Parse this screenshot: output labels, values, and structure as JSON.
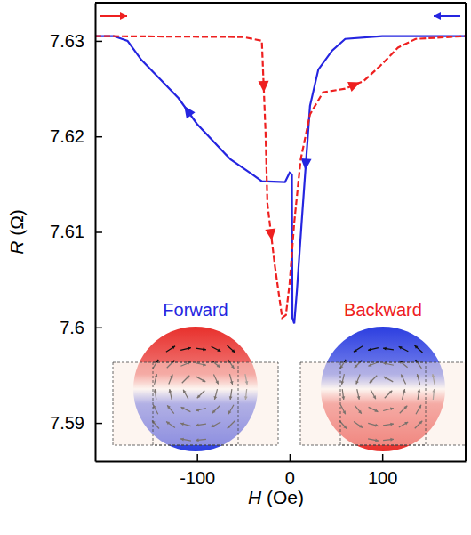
{
  "chart_data": {
    "type": "line",
    "x_label": "H (Oe)",
    "y_label": "R (Ω)",
    "xlim": [
      -210,
      190
    ],
    "ylim": [
      7.586,
      7.634
    ],
    "xticks": [
      -100,
      0,
      100
    ],
    "yticks": [
      7.59,
      7.6,
      7.61,
      7.62,
      7.63
    ],
    "series": [
      {
        "name": "Forward",
        "color": "#2525e0",
        "line_style": "solid",
        "x": [
          190,
          100,
          60,
          46,
          31,
          22,
          13,
          8,
          5,
          3,
          2.5,
          0,
          -5,
          -30,
          -40,
          -64,
          -100,
          -120,
          -140,
          -160,
          -175,
          -190,
          -210
        ],
        "values": [
          7.6305,
          7.6305,
          7.6302,
          7.629,
          7.627,
          7.6232,
          7.611,
          7.604,
          7.6004,
          7.601,
          7.616,
          7.6162,
          7.6152,
          7.6153,
          7.616,
          7.6176,
          7.6213,
          7.624,
          7.626,
          7.628,
          7.63,
          7.6305,
          7.6305
        ]
      },
      {
        "name": "Backward",
        "color": "#ee2020",
        "line_style": "dashed",
        "x": [
          -210,
          -50,
          -30,
          -26,
          -24,
          -16,
          -8,
          -4,
          0,
          5,
          12,
          22,
          36,
          60,
          80,
          98,
          117,
          136,
          190
        ],
        "values": [
          7.6305,
          7.6304,
          7.63,
          7.6205,
          7.613,
          7.6065,
          7.601,
          7.6013,
          7.6046,
          7.611,
          7.6176,
          7.6223,
          7.6246,
          7.625,
          7.6258,
          7.6274,
          7.6293,
          7.6302,
          7.6305
        ]
      }
    ]
  }
}
